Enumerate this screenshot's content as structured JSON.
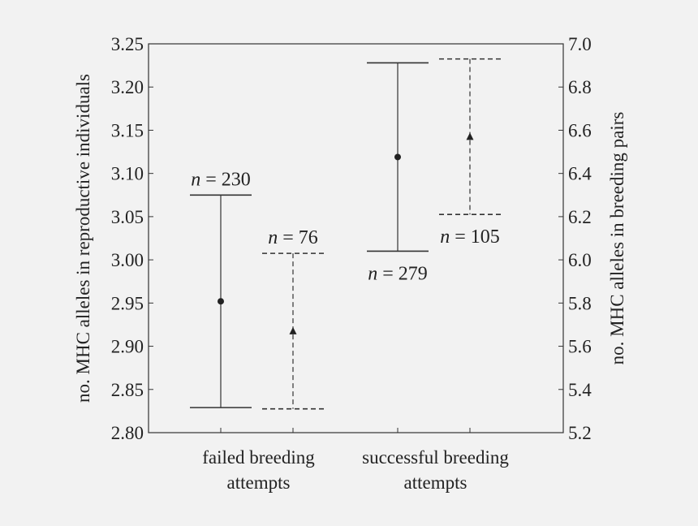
{
  "chart_data": {
    "type": "errorbar",
    "categories": [
      "failed breeding\nattempts",
      "successful breeding\nattempts"
    ],
    "left_axis": {
      "label": "no. MHC alleles in reproductive individuals",
      "ylim": [
        2.8,
        3.25
      ],
      "ticks": [
        "2.80",
        "2.85",
        "2.90",
        "2.95",
        "3.00",
        "3.05",
        "3.10",
        "3.15",
        "3.20",
        "3.25"
      ]
    },
    "right_axis": {
      "label": "no. MHC alleles in breeding pairs",
      "ylim": [
        5.2,
        7.0
      ],
      "ticks": [
        "5.2",
        "5.4",
        "5.6",
        "5.8",
        "6.0",
        "6.2",
        "6.4",
        "6.6",
        "6.8",
        "7.0"
      ]
    },
    "series": [
      {
        "axis": "left",
        "marker": "circle",
        "line_style": "solid",
        "points": [
          {
            "category": 0,
            "mean": 2.952,
            "low": 2.829,
            "high": 3.075,
            "n_label": "n = 230"
          },
          {
            "category": 1,
            "mean": 3.119,
            "low": 3.01,
            "high": 3.228,
            "n_label": "n = 279"
          }
        ]
      },
      {
        "axis": "right",
        "marker": "triangle",
        "line_style": "dashed",
        "points": [
          {
            "category": 0,
            "mean": 5.67,
            "low": 5.31,
            "high": 6.03,
            "n_label": "n = 76"
          },
          {
            "category": 1,
            "mean": 6.57,
            "low": 6.21,
            "high": 6.93,
            "n_label": "n = 105"
          }
        ]
      }
    ]
  }
}
